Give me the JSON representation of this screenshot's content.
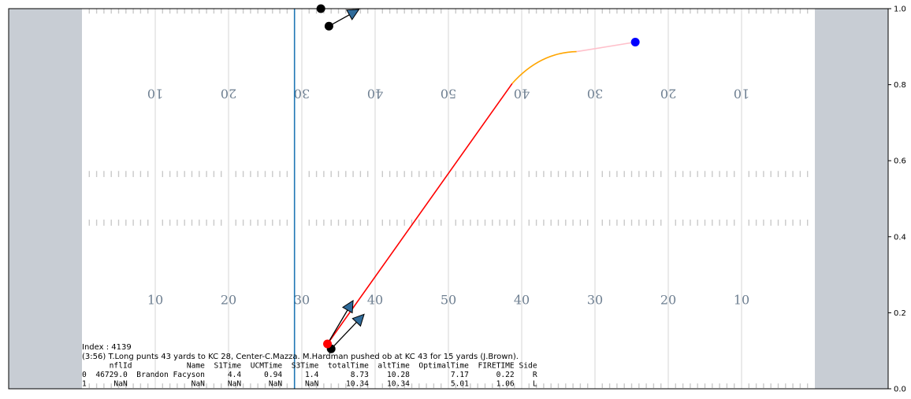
{
  "chart_data": {
    "type": "scatter",
    "ylim": [
      0,
      1
    ],
    "y_ticks": [
      "0.0",
      "0.2",
      "0.4",
      "0.6",
      "0.8",
      "1.0"
    ],
    "field_numbers_bottom": [
      "10",
      "20",
      "30",
      "40",
      "50",
      "40",
      "30",
      "20",
      "10"
    ],
    "field_numbers_top": [
      "10",
      "20",
      "30",
      "40",
      "50",
      "40",
      "30",
      "20",
      "10"
    ],
    "line_of_scrimmage_yard": 29,
    "colors": {
      "endzone": "#c8cdd4",
      "scrimmage_line": "#1f77b4",
      "trajectory_main": "#ff0000",
      "trajectory_curve": "#ffa500",
      "trajectory_tail": "#ffc0cb",
      "start_point": "#ff0000",
      "end_point": "#0000ff",
      "player": "#000000",
      "arrow": "#2f6b9a"
    },
    "trajectory": {
      "start": [
        33.5,
        0.118
      ],
      "end": [
        75.5,
        0.912
      ]
    },
    "players": [
      {
        "x": 34.0,
        "y": 0.105
      },
      {
        "x": 33.7,
        "y": 0.954
      },
      {
        "x": 32.6,
        "y": 1.0
      }
    ],
    "arrows": [
      {
        "from": [
          33.5,
          0.118
        ],
        "to": [
          37.0,
          0.232
        ]
      },
      {
        "from": [
          34.0,
          0.105
        ],
        "to": [
          38.5,
          0.196
        ]
      },
      {
        "from": [
          33.7,
          0.954
        ],
        "to": [
          37.8,
          0.998
        ]
      }
    ]
  },
  "info": {
    "index_line": "Index : 4139",
    "play_line": "(3:56) T.Long punts 43 yards to KC 28, Center-C.Mazza. M.Hardman pushed ob at KC 43 for 15 yards (J.Brown).",
    "table": [
      "      nflId            Name  S1Time  UCMTime  S3Time  totalTime  altTime  OptimalTime  FIRETIME Side",
      "0  46729.0  Brandon Facyson     4.4     0.94     1.4       8.73    10.28         7.17      0.22    R",
      "1      NaN              NaN     NaN      NaN     NaN      10.34    10.34         5.01      1.06    L"
    ]
  }
}
